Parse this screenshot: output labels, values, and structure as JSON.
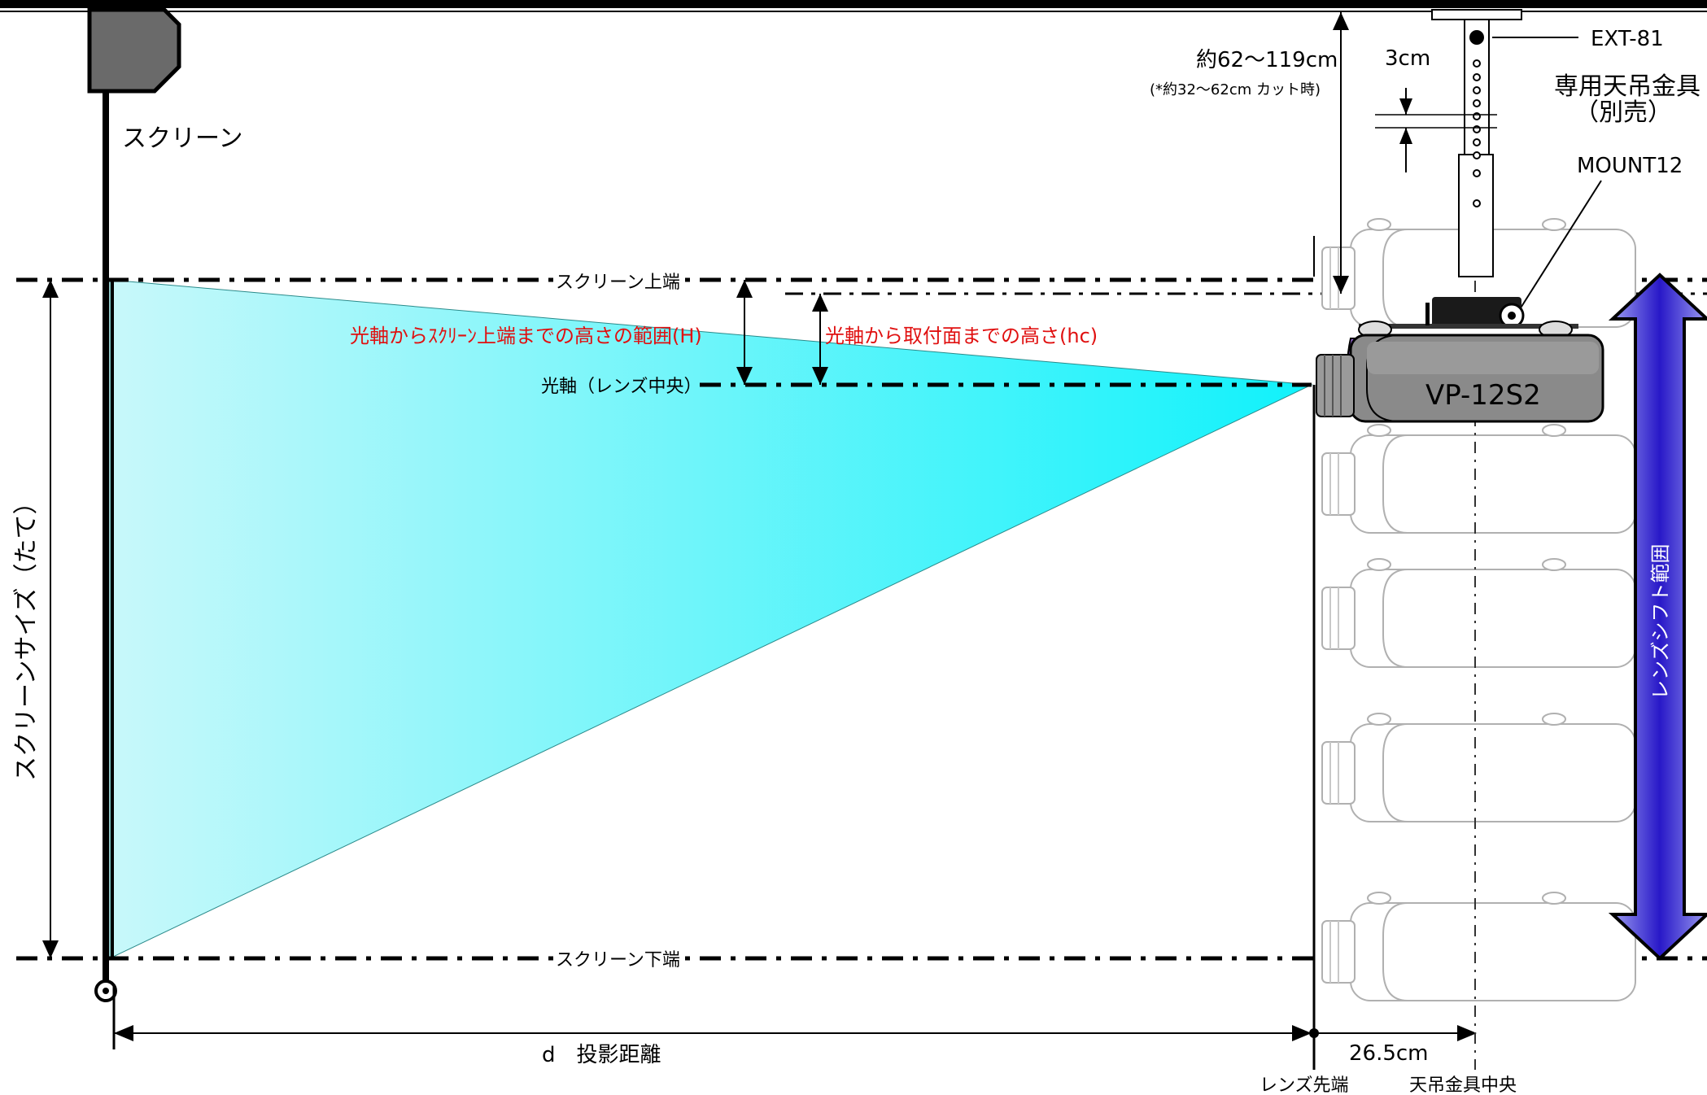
{
  "labels": {
    "screen": "スクリーン",
    "screen_size_vertical": "スクリーンサイズ（たて）",
    "screen_top": "スクリーン上端",
    "screen_bottom": "スクリーン下端",
    "optical_axis": "光軸（レンズ中央）",
    "range_h": "光軸からｽｸﾘｰﾝ上端までの高さの範囲(H)",
    "height_hc": "光軸から取付面までの高さ(hc)",
    "throw_distance": "d　投影距離",
    "offset_26_5": "26.5cm",
    "lens_tip": "レンズ先端",
    "mount_center": "天吊金具中央",
    "pole_length": "約62～119cm",
    "pole_length_note": "(*約32～62cm カット時)",
    "pitch_3cm": "3cm",
    "ext_model": "EXT-81",
    "bracket_title": "専用天吊金具",
    "bracket_sub": "（別売）",
    "mount_model": "MOUNT12",
    "projector_model": "VP-12S2",
    "lens_shift_range": "レンズシフト範囲"
  },
  "colors": {
    "beam_light": "#c8f8fa",
    "beam_dark": "#10f2fb",
    "lens_shift_arrow": "#4a3ad8",
    "projector_accent": "#a070e0",
    "projector_body": "#8a8a8a",
    "annotation_red": "#e01010"
  },
  "icons": {
    "screen_housing": "screen-case-icon",
    "projector": "projector-icon"
  }
}
